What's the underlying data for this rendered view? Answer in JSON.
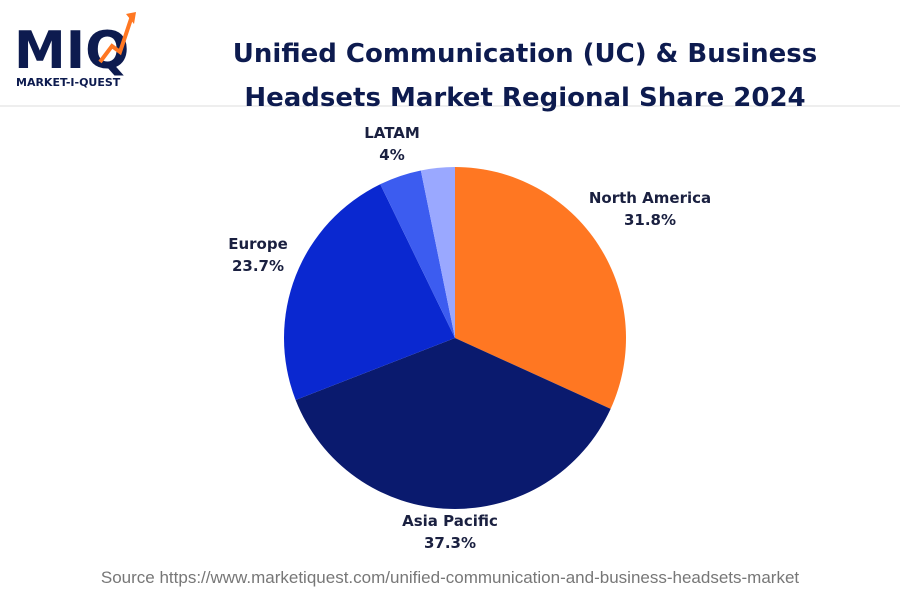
{
  "logo": {
    "mark": "MIQ",
    "name": "MARKET-I-QUEST"
  },
  "chart_data": {
    "type": "pie",
    "title": "Unified Communication (UC) & Business Headsets Market Regional Share 2024",
    "categories": [
      "North America",
      "Asia Pacific",
      "Europe",
      "LATAM",
      null
    ],
    "values": [
      31.8,
      37.3,
      23.7,
      4,
      3.2
    ],
    "value_labels": [
      "31.8%",
      "37.3%",
      "23.7%",
      "4%",
      null
    ],
    "colors": [
      "#ff7722",
      "#0a1a6e",
      "#0a28d0",
      "#3c5cf0",
      "#9aa8ff"
    ]
  },
  "source": "Source https://www.marketiquest.com/unified-communication-and-business-headsets-market"
}
